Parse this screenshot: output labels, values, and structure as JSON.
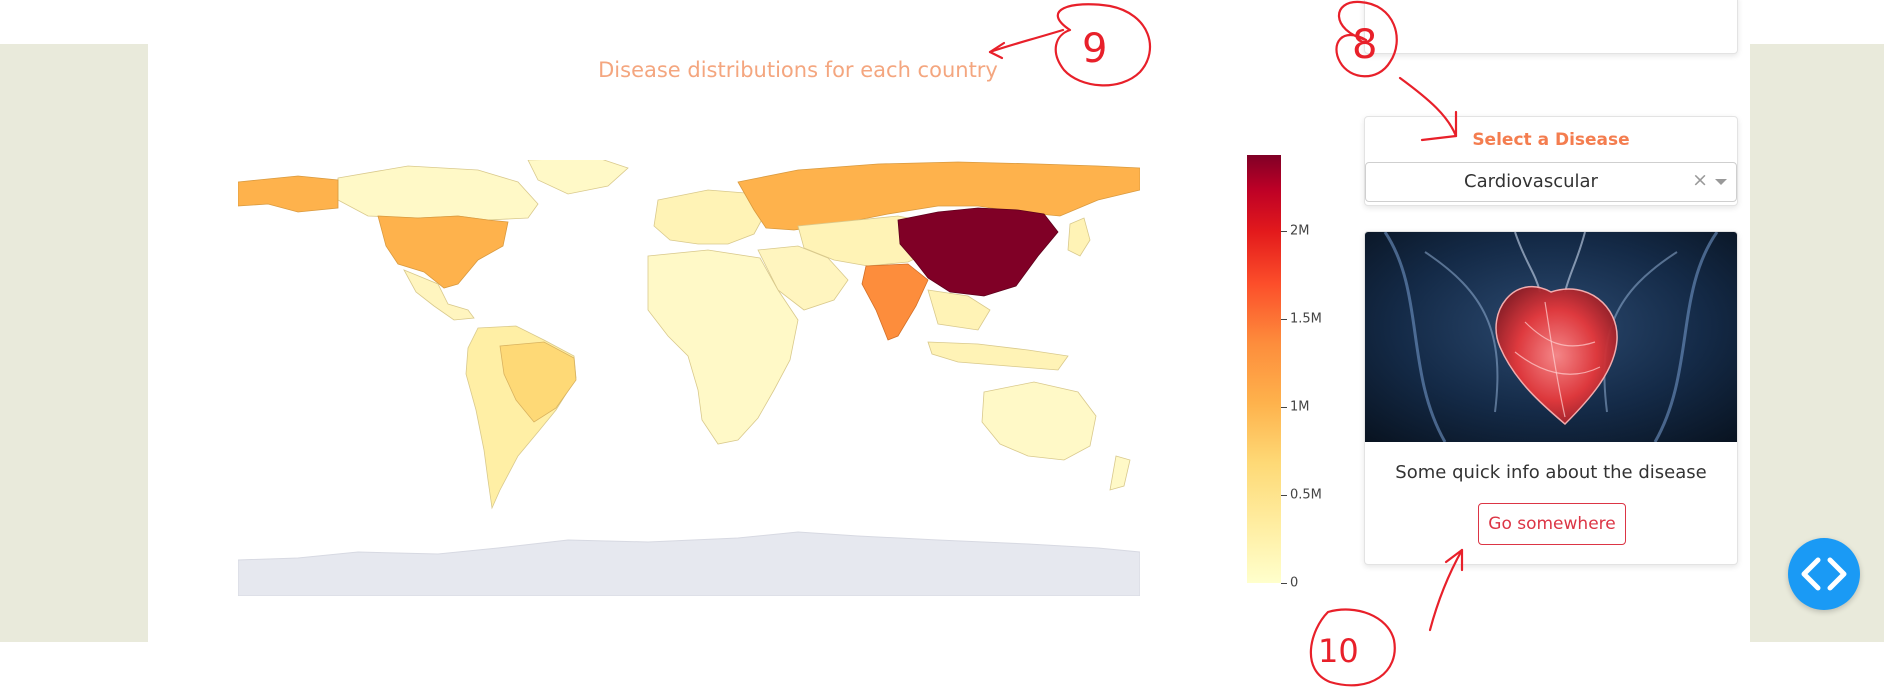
{
  "map": {
    "title": "Disease distributions for each country"
  },
  "colorbar": {
    "ticks": [
      "0",
      "0.5M",
      "1M",
      "1.5M",
      "2M"
    ],
    "tick_values": [
      0,
      500000,
      1000000,
      1500000,
      2000000
    ],
    "max": 2400000,
    "colors": [
      "#ffffcc",
      "#ffeda0",
      "#fed976",
      "#feb24c",
      "#fd8d3c",
      "#fc4e2a",
      "#e31a1c",
      "#bd0026",
      "#800026"
    ]
  },
  "countries": [
    {
      "name": "China",
      "level": "max"
    },
    {
      "name": "India",
      "level": "high"
    },
    {
      "name": "Russia",
      "level": "medium"
    },
    {
      "name": "United States",
      "level": "medium"
    },
    {
      "name": "Brazil",
      "level": "low"
    }
  ],
  "selector": {
    "label": "Select a Disease",
    "value": "Cardiovascular",
    "clear_symbol": "×"
  },
  "card": {
    "image_alt": "heart illustration",
    "text": "Some quick info about the disease",
    "button_label": "Go somewhere"
  },
  "fab": {
    "icon": "code-icon"
  },
  "annotations": {
    "marks": [
      "9",
      "8",
      "10"
    ]
  },
  "colors": {
    "side_background": "#e9eadb",
    "title": "#f4a67f",
    "accent": "#f47d4f",
    "button": "#dc3545",
    "fab": "#1a9af5",
    "annotation": "#e8202a"
  }
}
